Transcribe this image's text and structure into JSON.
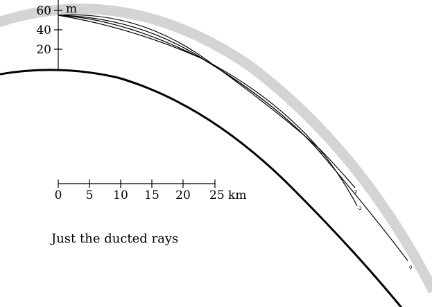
{
  "vertical_scale": {
    "unit": "m",
    "ticks": [
      "60",
      "40",
      "20"
    ]
  },
  "horizontal_scale": {
    "ticks": [
      "0",
      "5",
      "10",
      "15",
      "20",
      "25 km"
    ]
  },
  "ray_labels": [
    "2",
    "-2",
    "0"
  ],
  "caption": "Just the ducted rays",
  "colors": {
    "earth": "#000000",
    "duct_band": "#d4d4d4",
    "rays": "#000000"
  }
}
